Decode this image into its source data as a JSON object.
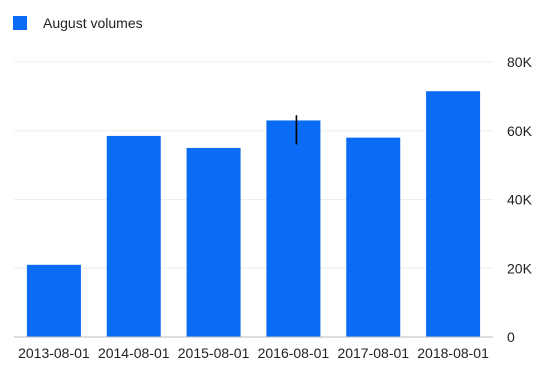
{
  "chart_data": {
    "type": "bar",
    "categories": [
      "2013-08-01",
      "2014-08-01",
      "2015-08-01",
      "2016-08-01",
      "2017-08-01",
      "2018-08-01"
    ],
    "series": [
      {
        "name": "August volumes",
        "values": [
          21000,
          58500,
          55000,
          63000,
          58000,
          71500
        ],
        "color": "#0A6CF5"
      }
    ],
    "ylim": [
      0,
      80000
    ],
    "yticks": [
      0,
      20000,
      40000,
      60000,
      80000
    ],
    "ytick_labels": [
      "0",
      "20K",
      "40K",
      "60K",
      "80K"
    ],
    "grid": true,
    "legend": "top-left",
    "colors": {
      "bar": "#0A6CF5",
      "grid": "#eeeeee",
      "axis": "#bdbdbd",
      "marker": "#000000"
    },
    "annotations": [
      {
        "type": "vertical-marker",
        "category": "2016-08-01",
        "y_from": 56000,
        "y_to": 64500
      }
    ]
  }
}
